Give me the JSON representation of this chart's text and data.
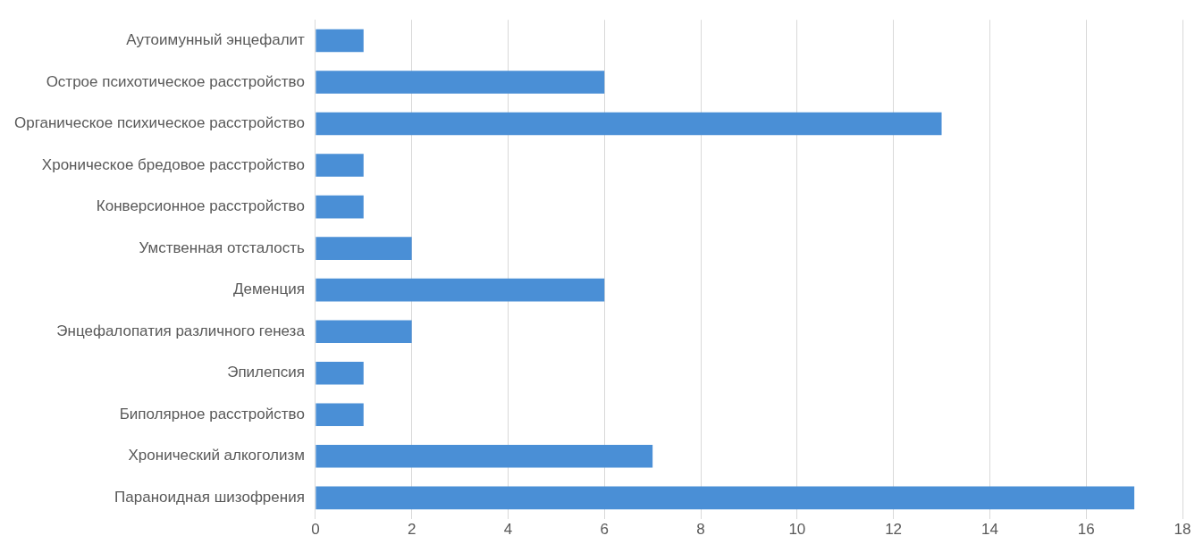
{
  "chart_data": {
    "type": "bar",
    "orientation": "horizontal",
    "categories": [
      "Аутоимунный энцефалит",
      "Острое психотическое расстройство",
      "Органическое психическое расстройство",
      "Хроническое бредовое расстройство",
      "Конверсионное расстройство",
      "Умственная отсталость",
      "Деменция",
      "Энцефалопатия различного генеза",
      "Эпилепсия",
      "Биполярное расстройство",
      "Хронический алкоголизм",
      "Параноидная шизофрения"
    ],
    "values": [
      1,
      6,
      13,
      1,
      1,
      2,
      6,
      2,
      1,
      1,
      7,
      17
    ],
    "color": "#4a8fd6",
    "xlim": [
      0,
      18
    ],
    "xticks": [
      0,
      2,
      4,
      6,
      8,
      10,
      12,
      14,
      16,
      18
    ],
    "grid": "x",
    "legend": false
  }
}
